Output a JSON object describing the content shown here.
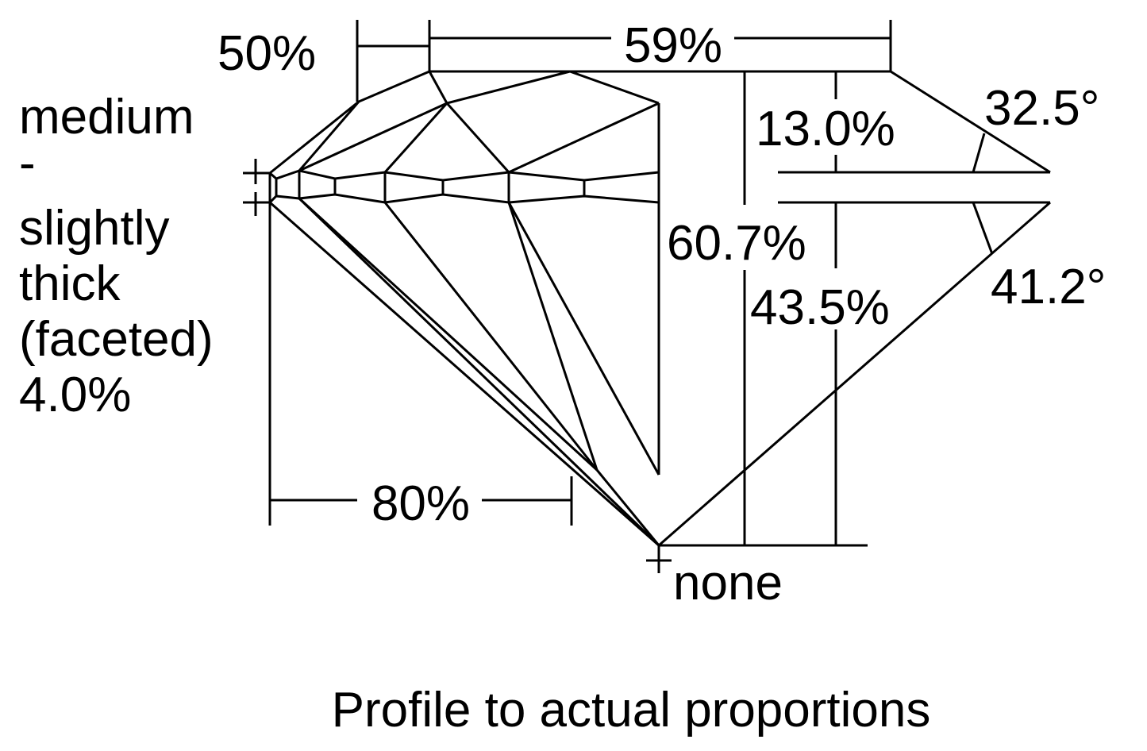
{
  "diagram": {
    "table_percent": "59%",
    "crown_to_table_percent": "50%",
    "girdle_label_lines": [
      "medium",
      "-",
      "slightly",
      "thick",
      "(faceted)",
      "4.0%"
    ],
    "crown_height": "13.0%",
    "crown_angle": "32.5°",
    "total_depth": "60.7%",
    "pavilion_depth": "43.5%",
    "pavilion_angle": "41.2°",
    "lower_half_length": "80%",
    "culet": "none",
    "caption": "Profile to actual proportions",
    "line_color": "#000000",
    "background_color": "#ffffff"
  }
}
